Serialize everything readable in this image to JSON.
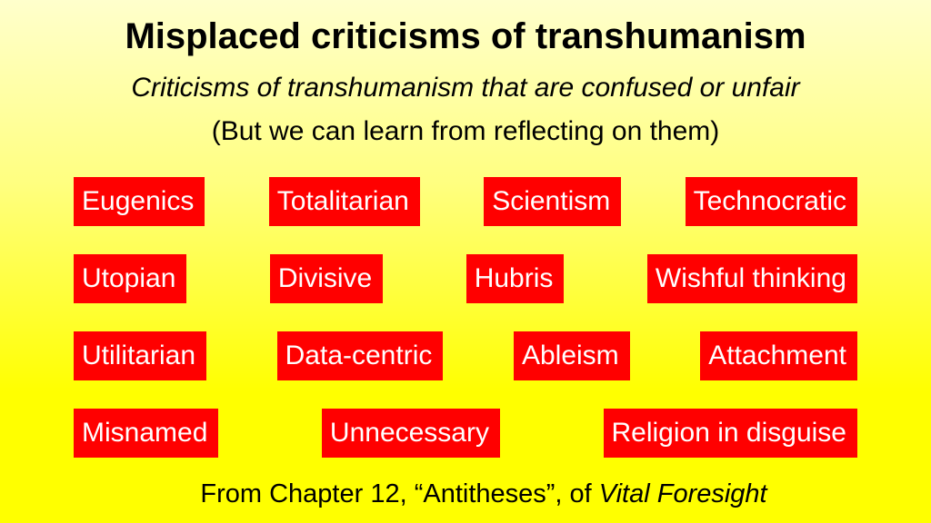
{
  "header": {
    "title": "Misplaced criticisms of transhumanism",
    "subtitle": "Criticisms of transhumanism that are confused or unfair",
    "note": "(But we can learn from reflecting on them)"
  },
  "rows": [
    [
      "Eugenics",
      "Totalitarian",
      "Scientism",
      "Technocratic"
    ],
    [
      "Utopian",
      "Divisive",
      "Hubris",
      "Wishful thinking"
    ],
    [
      "Utilitarian",
      "Data-centric",
      "Ableism",
      "Attachment"
    ],
    [
      "Misnamed",
      "Unnecessary",
      "Religion in disguise"
    ]
  ],
  "footer": {
    "text": "From Chapter 12, “Antitheses”, of",
    "book": "Vital Foresight"
  }
}
